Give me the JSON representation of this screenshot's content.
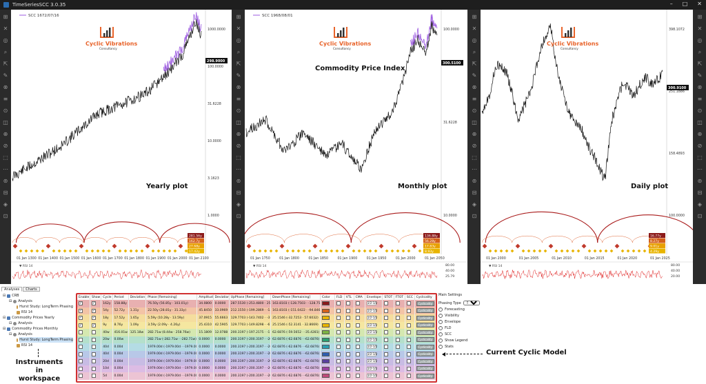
{
  "window": {
    "title": "TimeSeriesSCC 3.0.35",
    "buttons": [
      "–",
      "□",
      "✕"
    ]
  },
  "panels": [
    {
      "legend": "SCC 1672/07/16",
      "plot_label": "Yearly plot",
      "title": "",
      "last_price": "298.9000",
      "axis_values": [
        "1000.0000",
        "100.0000",
        "31.6228",
        "10.0000",
        "3.1623",
        "1.0000"
      ],
      "x_ticks": [
        "01 Jan 1300",
        "01 Jan 1400",
        "01 Jan 1500",
        "01 Jan 1600",
        "01 Jan 1700",
        "01 Jan 1800",
        "01 Jan 1900",
        "01 Jan 2000",
        "01 Jan 2100"
      ],
      "rsi_label": "RSI 14",
      "cycle_badges": [
        "281.56y",
        "162.7y",
        "27.68y",
        "17.42y"
      ]
    },
    {
      "legend": "SCC 1968/08/01",
      "plot_label": "Monthly plot",
      "title": "Commodity Price Index",
      "last_price": "300.5100",
      "axis_values": [
        "100.0000",
        "31.6228",
        "10.0000"
      ],
      "x_ticks": [
        "01 Jan 1750",
        "01 Jan 1800",
        "01 Jan 1850",
        "01 Jan 1900",
        "01 Jan 1950",
        "01 Jan 2000",
        "01 Jan 2050"
      ],
      "rsi_label": "RSI 14",
      "rsi_values": [
        "80.00",
        "40.00",
        "25.79"
      ],
      "cycle_badges": [
        "136.88y",
        "56.28y",
        "17.83y",
        "8.93y"
      ]
    },
    {
      "legend": "",
      "plot_label": "Daily plot",
      "title": "",
      "last_price": "300.9100",
      "axis_values": [
        "398.1072",
        "251.1886",
        "158.4893",
        "100.0000"
      ],
      "x_ticks": [
        "01 Jan 2000",
        "01 Jan 2005",
        "01 Jan 2010",
        "01 Jan 2015",
        "01 Jan 2020",
        "01 Jan 2025"
      ],
      "rsi_label": "RSI 14",
      "rsi_values": [
        "80.00",
        "40.00",
        "20.00"
      ],
      "cycle_badges": [
        "16.77y",
        "8.27y",
        "9.01y",
        "4.29y"
      ]
    }
  ],
  "brand": {
    "name": "Cyclic Vibrations",
    "sub": "Consultancy"
  },
  "tree": {
    "tabs": [
      "Analyses",
      "Charts"
    ],
    "nodes": [
      {
        "label": "CRB",
        "level": 0,
        "kind": "instr"
      },
      {
        "label": "Analysis",
        "level": 1,
        "kind": "an"
      },
      {
        "label": "Hurst Study: LongTerm Phasing",
        "level": 2,
        "kind": "st"
      },
      {
        "label": "RSI 14",
        "level": 2,
        "kind": "st"
      },
      {
        "label": "Commodity Prices Yearly",
        "level": 0,
        "kind": "instr"
      },
      {
        "label": "Analysis",
        "level": 1,
        "kind": "an"
      },
      {
        "label": "Commodity Prices Monthly",
        "level": 0,
        "kind": "instr"
      },
      {
        "label": "Analysis",
        "level": 1,
        "kind": "an"
      },
      {
        "label": "Hurst Study: LongTerm Phasing",
        "level": 2,
        "kind": "st",
        "selected": true
      },
      {
        "label": "RSI 14",
        "level": 2,
        "kind": "st"
      }
    ]
  },
  "annotations": {
    "instruments": "Instruments in workspace",
    "model": "Current Cyclic Model"
  },
  "model": {
    "columns": [
      "Enable",
      "Show",
      "Cycle",
      "Period",
      "Deviation",
      "Phase [Remaining]",
      "Amplitude",
      "Deviation",
      "UpPhase [Remaining]",
      "DownPhase [Remaining]",
      "Color",
      "FLD",
      "VTL",
      "CMA",
      "Envelope",
      "STOT",
      "FTOT",
      "SCC",
      "Cyclicality"
    ],
    "rows": [
      {
        "enable": true,
        "show": true,
        "cycle": "162y",
        "period": "158.88y",
        "dev": "",
        "phase": "76.50y (56.85y · 103.01y)",
        "amp": "34.0800",
        "adev": "0.0000",
        "up": "287.5530 (-253.4800 · 253.4800)",
        "down": "163.8103 (-128.7503 · -128.7503)",
        "color": "#8b1a1a",
        "bg": "#e8b0b0"
      },
      {
        "enable": true,
        "show": true,
        "cycle": "54y",
        "period": "52.72y",
        "dev": "1.31y",
        "phase": "22.50y (28.81y · 31.33y)",
        "amp": "45.8450",
        "adev": "33.0969",
        "up": "212.1550 (-199.2869 · -133.1931)",
        "down": "163.8103 (-151.0422 · -94.8464)",
        "color": "#d4601a",
        "bg": "#f3c4a6"
      },
      {
        "enable": true,
        "show": true,
        "cycle": "18y",
        "period": "17.52y",
        "dev": "1.65y",
        "phase": "5.59y (10.28y · 13.59y)",
        "amp": "37.0915",
        "adev": "55.6663",
        "up": "129.7703 (-143.7402 · -37.0125)",
        "down": "25.1546 (-32.7253 · 57.6032)",
        "color": "#e8b400",
        "bg": "#f5dd9e"
      },
      {
        "enable": true,
        "show": true,
        "cycle": "9y",
        "period": "8.76y",
        "dev": "1.09y",
        "phase": "3.59y (2.09y · 4.26y)",
        "amp": "25.4310",
        "adev": "42.5905",
        "up": "129.7703 (-149.8298 · -61.7488)",
        "down": "25.1546 (-52.3141 · 32.8669)",
        "color": "#e8b400",
        "bg": "#f5e7a0"
      },
      {
        "enable": false,
        "show": false,
        "cycle": "40w",
        "period": "416.01w",
        "dev": "125.18w",
        "phase": "282.71w (8.44w · 258.76w)",
        "amp": "15.1809",
        "adev": "12.0788",
        "up": "200.3197 (-197.2175 · -173.0802)",
        "down": "62.6876 (-59.5652 · -35.4281)",
        "color": "#7cb342",
        "bg": "#d5e8b0"
      },
      {
        "enable": false,
        "show": false,
        "cycle": "20w",
        "period": "0.00w",
        "dev": "",
        "phase": "282.71w (-282.71w · -282.71w)",
        "amp": "0.0000",
        "adev": "0.0000",
        "up": "200.3197 (-200.3197 · -200.3197)",
        "down": "62.6876 (-62.6876 · -62.6876)",
        "color": "#2aa070",
        "bg": "#b4e0cc"
      },
      {
        "enable": false,
        "show": false,
        "cycle": "40d",
        "period": "0.00d",
        "dev": "",
        "phase": "1979.00d (-1979.00d · -1979.00d)",
        "amp": "0.0000",
        "adev": "0.0000",
        "up": "200.3197 (-200.3197 · -200.3197)",
        "down": "62.6876 (-62.6876 · -62.6876)",
        "color": "#2a9fb0",
        "bg": "#b4dce4"
      },
      {
        "enable": false,
        "show": false,
        "cycle": "40d",
        "period": "0.00d",
        "dev": "",
        "phase": "1979.00d (-1979.00d · -1979.00d)",
        "amp": "0.0000",
        "adev": "0.0000",
        "up": "200.3197 (-200.3197 · -200.3197)",
        "down": "62.6876 (-62.6876 · -62.6876)",
        "color": "#2f5fb0",
        "bg": "#b8c8e8"
      },
      {
        "enable": false,
        "show": false,
        "cycle": "20d",
        "period": "0.00d",
        "dev": "",
        "phase": "1979.00d (-1979.00d · -1979.00d)",
        "amp": "0.0000",
        "adev": "0.0000",
        "up": "200.3197 (-200.3197 · -200.3197)",
        "down": "62.6876 (-62.6876 · -62.6876)",
        "color": "#5a3fa0",
        "bg": "#c8bce4"
      },
      {
        "enable": false,
        "show": false,
        "cycle": "10d",
        "period": "0.00d",
        "dev": "",
        "phase": "1979.00d (-1979.00d · -1979.00d)",
        "amp": "0.0000",
        "adev": "0.0000",
        "up": "200.3197 (-200.3197 · -200.3197)",
        "down": "62.6876 (-62.6876 · -62.6876)",
        "color": "#9a3fa0",
        "bg": "#dcbce4"
      },
      {
        "enable": false,
        "show": false,
        "cycle": "5d",
        "period": "0.00d",
        "dev": "",
        "phase": "1979.00d (-1979.00d · -1979.00d)",
        "amp": "0.0000",
        "adev": "0.0000",
        "up": "200.3197 (-200.3197 · -200.3197)",
        "down": "62.6876 (-62.6876 · -62.6876)",
        "color": "#c04a7a",
        "bg": "#ecc4d4"
      }
    ],
    "cyc_label": "Cyclicality",
    "mini_label": "1/2-1/2"
  },
  "settings": {
    "header": "Main Settings",
    "phasing_label": "Phasing Type",
    "phasing_value": "Troughs",
    "items": [
      "Forecasting",
      "Visibility",
      "Envelope",
      "FLD",
      "SCC",
      "Show Legend",
      "Stats"
    ]
  }
}
